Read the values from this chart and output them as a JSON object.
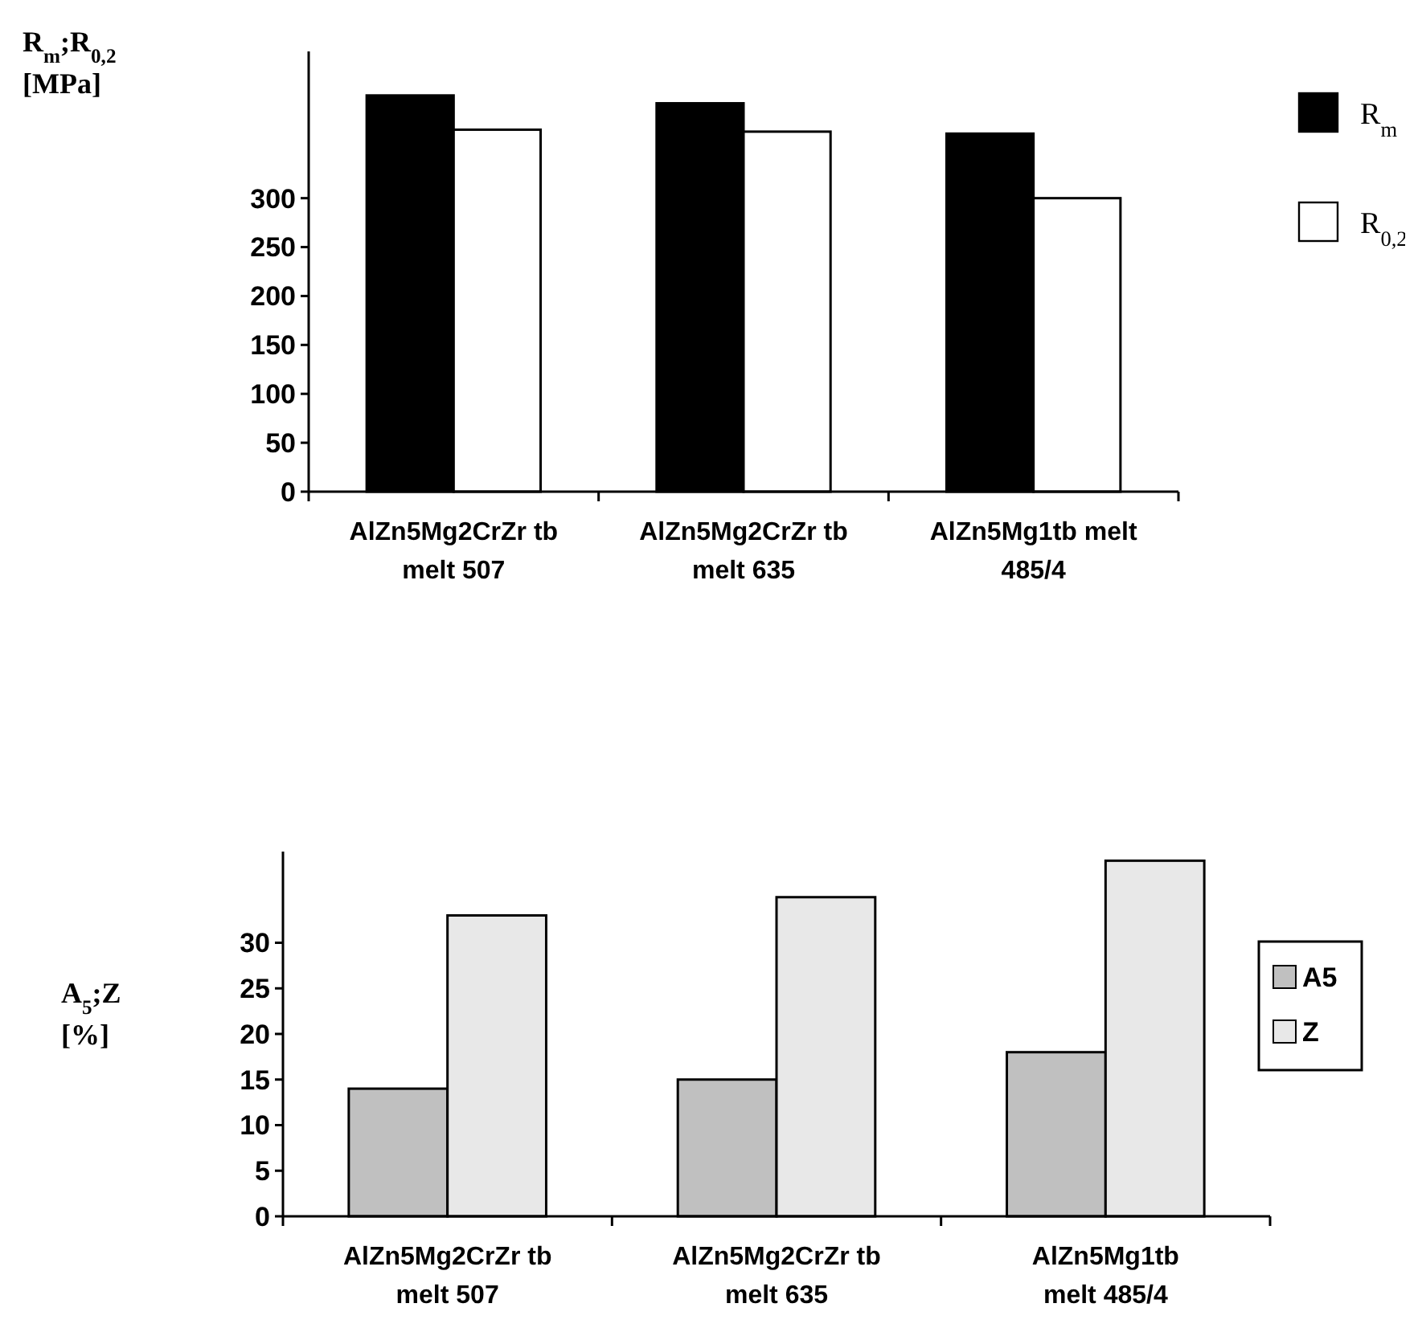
{
  "chart_data": [
    {
      "type": "bar",
      "ylabel": "R$_{m}$;R$_{0,2}$ [MPa]",
      "categories": [
        "AlZn5Mg2CrZr tb\nmelt 507",
        "AlZn5Mg2CrZr tb\nmelt 635",
        "AlZn5Mg1tb melt\n485/4"
      ],
      "series": [
        {
          "name": "R$_{m}$",
          "color": "#000000",
          "values": [
            405,
            397,
            366
          ]
        },
        {
          "name": "R$_{0,2}$",
          "color": "#ffffff",
          "values": [
            370,
            368,
            300
          ]
        }
      ],
      "ylim": [
        0,
        450
      ],
      "yticks": [
        0,
        50,
        100,
        150,
        200,
        250,
        300
      ],
      "legend": "top right"
    },
    {
      "type": "bar",
      "ylabel": "A$_{5}$;Z [%]",
      "categories": [
        "AlZn5Mg2CrZr tb\nmelt 507",
        "AlZn5Mg2CrZr tb\nmelt 635",
        "AlZn5Mg1tb\nmelt 485/4"
      ],
      "series": [
        {
          "name": "A5",
          "color": "#c0c0c0",
          "values": [
            14,
            15,
            18
          ]
        },
        {
          "name": "Z",
          "color": "#e8e8e8",
          "values": [
            33,
            35,
            39
          ]
        }
      ],
      "ylim": [
        0,
        40
      ],
      "yticks": [
        0,
        5,
        10,
        15,
        20,
        25,
        30
      ],
      "legend": "right"
    }
  ]
}
